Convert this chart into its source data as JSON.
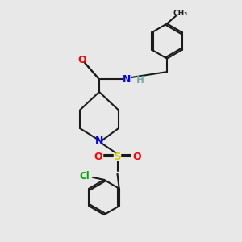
{
  "bg_color": "#e8e8e8",
  "bond_color": "#1a1a1a",
  "bond_width": 1.5,
  "atom_colors": {
    "C": "#1a1a1a",
    "N": "#0000ff",
    "O": "#ff0000",
    "S": "#cccc00",
    "Cl": "#00aa00",
    "H": "#7aabab"
  },
  "font_size": 8.5
}
